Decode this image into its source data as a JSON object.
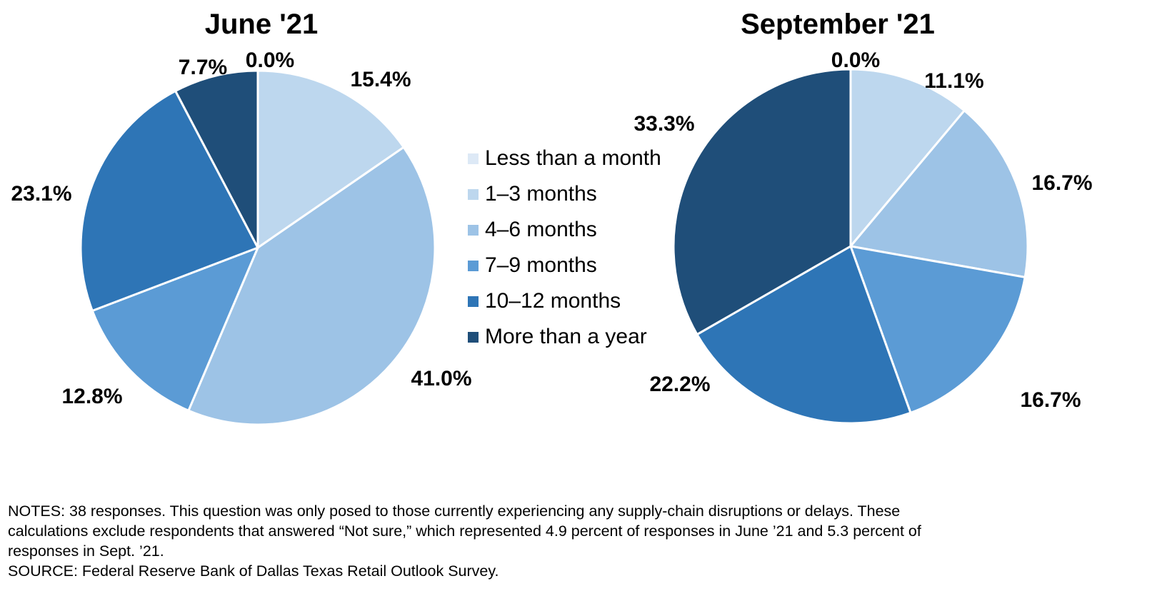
{
  "chart_data": [
    {
      "type": "pie",
      "title": "June '21",
      "categories": [
        "Less than a month",
        "1–3 months",
        "4–6 months",
        "7–9 months",
        "10–12 months",
        "More than a year"
      ],
      "values": [
        0.0,
        15.4,
        41.0,
        12.8,
        23.1,
        7.7
      ],
      "labels": [
        "0.0%",
        "15.4%",
        "41.0%",
        "12.8%",
        "23.1%",
        "7.7%"
      ]
    },
    {
      "type": "pie",
      "title": "September '21",
      "categories": [
        "Less than a month",
        "1–3 months",
        "4–6 months",
        "7–9 months",
        "10–12 months",
        "More than a year"
      ],
      "values": [
        0.0,
        11.1,
        16.7,
        16.7,
        22.2,
        33.3
      ],
      "labels": [
        "0.0%",
        "11.1%",
        "16.7%",
        "16.7%",
        "22.2%",
        "33.3%"
      ]
    }
  ],
  "legend": {
    "items": [
      {
        "label": "Less than a month",
        "color": "#dde9f6"
      },
      {
        "label": "1–3 months",
        "color": "#bdd7ee"
      },
      {
        "label": "4–6 months",
        "color": "#9dc3e6"
      },
      {
        "label": "7–9 months",
        "color": "#5b9bd5"
      },
      {
        "label": "10–12 months",
        "color": "#2e75b6"
      },
      {
        "label": "More than a year",
        "color": "#1f4e79"
      }
    ]
  },
  "notes": {
    "line1": "NOTES: 38 responses. This question was only posed to those currently experiencing any supply-chain disruptions or delays. These",
    "line2": "calculations exclude respondents that answered “Not sure,” which represented 4.9 percent of responses in June ’21 and 5.3 percent of",
    "line3": "responses in Sept. ’21.",
    "source": "SOURCE: Federal Reserve Bank of Dallas Texas Retail Outlook Survey."
  }
}
